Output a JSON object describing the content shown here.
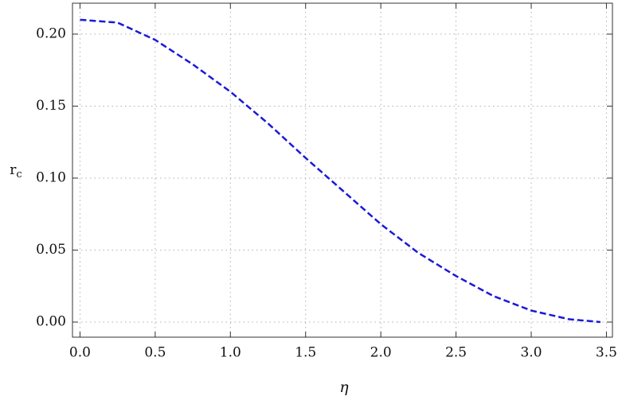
{
  "chart_data": {
    "type": "line",
    "xlabel": "η",
    "ylabel_main": "r",
    "ylabel_subscript": "c",
    "x": [
      0,
      0.25,
      0.5,
      0.75,
      1.0,
      1.25,
      1.5,
      1.75,
      2.0,
      2.25,
      2.5,
      2.75,
      3.0,
      3.25,
      3.46
    ],
    "series": [
      {
        "color": "#1a1ad8",
        "values": [
          0.21,
          0.208,
          0.196,
          0.179,
          0.16,
          0.138,
          0.114,
          0.091,
          0.068,
          0.048,
          0.032,
          0.018,
          0.008,
          0.002,
          0.0
        ]
      }
    ],
    "xlim": [
      -0.05,
      3.54
    ],
    "ylim": [
      -0.0105,
      0.2215
    ],
    "xticks": [
      {
        "value": 0,
        "label": "0.0"
      },
      0.5,
      {
        "value": 1,
        "label": "1.0"
      },
      1.5,
      {
        "value": 2,
        "label": "2.0"
      },
      2.5,
      {
        "value": 3,
        "label": "3.0"
      },
      3.5
    ],
    "yticks": [
      {
        "value": 0,
        "label": "0.00"
      },
      0.05,
      {
        "value": 0.1,
        "label": "0.10"
      },
      0.15,
      {
        "value": 0.2,
        "label": "0.20"
      }
    ],
    "grid": true,
    "dashed": true
  }
}
